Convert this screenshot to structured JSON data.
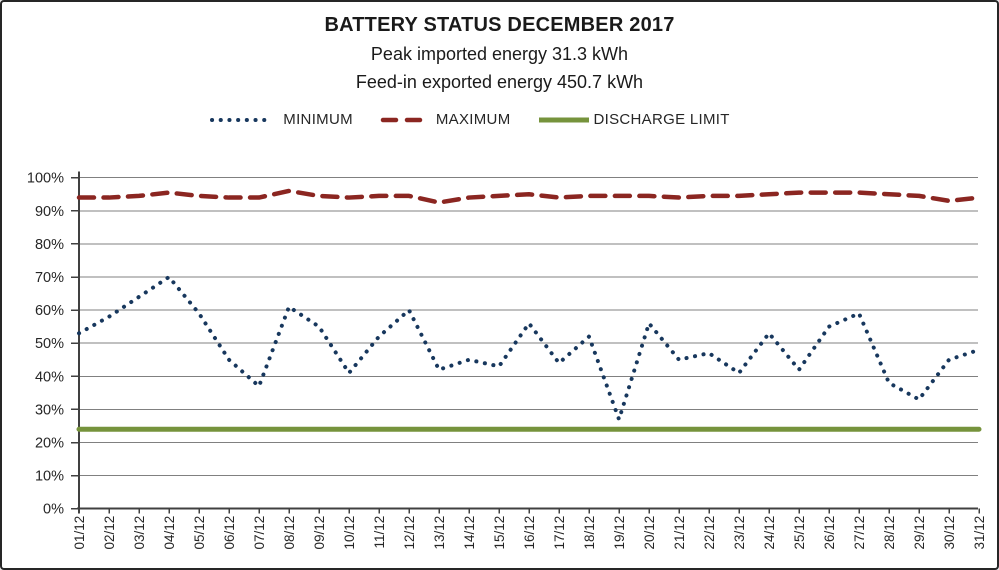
{
  "title": "BATTERY STATUS DECEMBER 2017",
  "subtitle1": "Peak imported energy 31.3 kWh",
  "subtitle2": "Feed-in exported energy 450.7 kWh",
  "legend": [
    {
      "label": "MINIMUM",
      "style": "dotted",
      "color": "#17375D"
    },
    {
      "label": "MAXIMUM",
      "style": "dashed",
      "color": "#8B2621"
    },
    {
      "label": "DISCHARGE LIMIT",
      "style": "solid",
      "color": "#76933C"
    }
  ],
  "chart_data": {
    "type": "line",
    "title": "BATTERY STATUS DECEMBER 2017",
    "categories": [
      "01/12",
      "02/12",
      "03/12",
      "04/12",
      "05/12",
      "06/12",
      "07/12",
      "08/12",
      "09/12",
      "10/12",
      "11/12",
      "12/12",
      "13/12",
      "14/12",
      "15/12",
      "16/12",
      "17/12",
      "18/12",
      "19/12",
      "20/12",
      "21/12",
      "22/12",
      "23/12",
      "24/12",
      "25/12",
      "26/12",
      "27/12",
      "28/12",
      "29/12",
      "30/12",
      "31/12"
    ],
    "series": [
      {
        "name": "MINIMUM",
        "style": "dotted",
        "color": "#17375D",
        "values": [
          53,
          58,
          64,
          70,
          59,
          45,
          37,
          61,
          55,
          41,
          52,
          60,
          42,
          45,
          43,
          56,
          44,
          52,
          27,
          56,
          45,
          47,
          41,
          53,
          42,
          55,
          59,
          38,
          33,
          45,
          48
        ]
      },
      {
        "name": "MAXIMUM",
        "style": "dashed",
        "color": "#8B2621",
        "values": [
          94,
          94,
          94.5,
          95.5,
          94.5,
          94,
          94,
          96,
          94.5,
          94,
          94.5,
          94.5,
          92.5,
          94,
          94.5,
          95,
          94,
          94.5,
          94.5,
          94.5,
          94,
          94.5,
          94.5,
          95,
          95.5,
          95.5,
          95.5,
          95,
          94.5,
          93,
          94
        ]
      },
      {
        "name": "DISCHARGE LIMIT",
        "style": "solid",
        "color": "#76933C",
        "constant": 24,
        "values": [
          24,
          24,
          24,
          24,
          24,
          24,
          24,
          24,
          24,
          24,
          24,
          24,
          24,
          24,
          24,
          24,
          24,
          24,
          24,
          24,
          24,
          24,
          24,
          24,
          24,
          24,
          24,
          24,
          24,
          24,
          24
        ]
      }
    ],
    "xlabel": "",
    "ylabel": "",
    "ylim": [
      0,
      100
    ],
    "y_ticks": [
      "0%",
      "10%",
      "20%",
      "30%",
      "40%",
      "50%",
      "60%",
      "70%",
      "80%",
      "90%",
      "100%"
    ],
    "grid": true,
    "legend_position": "top"
  }
}
